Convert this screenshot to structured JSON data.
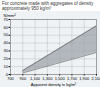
{
  "chart_data": {
    "type": "area",
    "title": "For concrete made with aggregates of density approximately 950 kg/m³",
    "x_label": "Apparent density in kg/m³",
    "y_label": "N/mm²",
    "x": [
      900,
      2100
    ],
    "upper": [
      5,
      62
    ],
    "lower": [
      2,
      28
    ],
    "color": "#9aa0a6",
    "xlim": [
      700,
      2100
    ],
    "xticks": [
      700,
      900,
      1100,
      1300,
      1500,
      1700,
      1900,
      2100
    ],
    "ylim": [
      0,
      70
    ],
    "yticks": [
      0,
      10,
      20,
      30,
      40,
      50,
      60,
      70
    ],
    "grid": true
  }
}
